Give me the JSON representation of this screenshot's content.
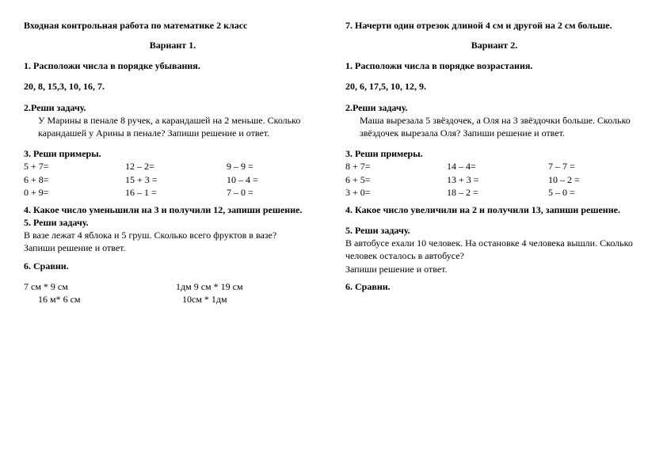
{
  "title": "Входная контрольная работа по математике 2 класс",
  "variant1": {
    "heading": "Вариант 1.",
    "q1_title": "1. Расположи числа в порядке убывания.",
    "q1_numbers": "20, 8, 15,3, 10, 16, 7.",
    "q2_title": "2.Реши задачу.",
    "q2_text": "У Марины в пенале 8 ручек, а карандашей на 2 меньше. Сколько карандашей у Арины в пенале? Запиши решение и ответ.",
    "q3_title": "3. Реши примеры.",
    "q3_col1": [
      "5 + 7=",
      "6 + 8=",
      "0 + 9="
    ],
    "q3_col2": [
      "12 – 2=",
      "15 + 3 =",
      "16 – 1 ="
    ],
    "q3_col3": [
      "9 – 9 =",
      "10 – 4 =",
      "7 – 0 ="
    ],
    "q4_title": "4. Какое число уменьшили на 3 и получили 12, запиши решение.",
    "q5_title": "5. Реши задачу.",
    "q5_text1": "В вазе лежат 4 яблока и 5 груш. Сколько всего фруктов в вазе?",
    "q5_text2": "Запиши решение и ответ.",
    "q6_title": "6. Сравни.",
    "q6_a1": "7 см * 9 см",
    "q6_b1": "1дм 9 см * 19 см",
    "q6_a2": "16 м* 6 см",
    "q6_b2": "10см * 1дм"
  },
  "variant2": {
    "q7_title": "7. Начерти один отрезок длиной  4 см  и другой на 2 см больше.",
    "heading": "Вариант 2.",
    "q1_title": "1. Расположи числа в порядке возрастания.",
    "q1_numbers": "20, 6, 17,5, 10, 12, 9.",
    "q2_title": "2.Реши задачу.",
    "q2_text": "Маша вырезала 5 звёздочек, а Оля на 3 звёздочки больше. Сколько звёздочек вырезала Оля? Запиши решение и ответ.",
    "q3_title": "3. Реши примеры.",
    "q3_col1": [
      "8 + 7=",
      "6 + 5=",
      "3 + 0="
    ],
    "q3_col2": [
      "14 – 4=",
      "13 + 3 =",
      "18 – 2 ="
    ],
    "q3_col3": [
      "7 – 7 =",
      "10 – 2 =",
      "5 – 0 ="
    ],
    "q4_title": "4. Какое число увеличили на 2 и получили 13, запиши решение.",
    "q5_title": "5. Реши задачу.",
    "q5_text1": "В автобусе ехали 10 человек. На остановке 4 человека вышли. Сколько человек осталось в автобусе?",
    "q5_text2": "Запиши решение и ответ.",
    "q6_title": "6. Сравни."
  }
}
